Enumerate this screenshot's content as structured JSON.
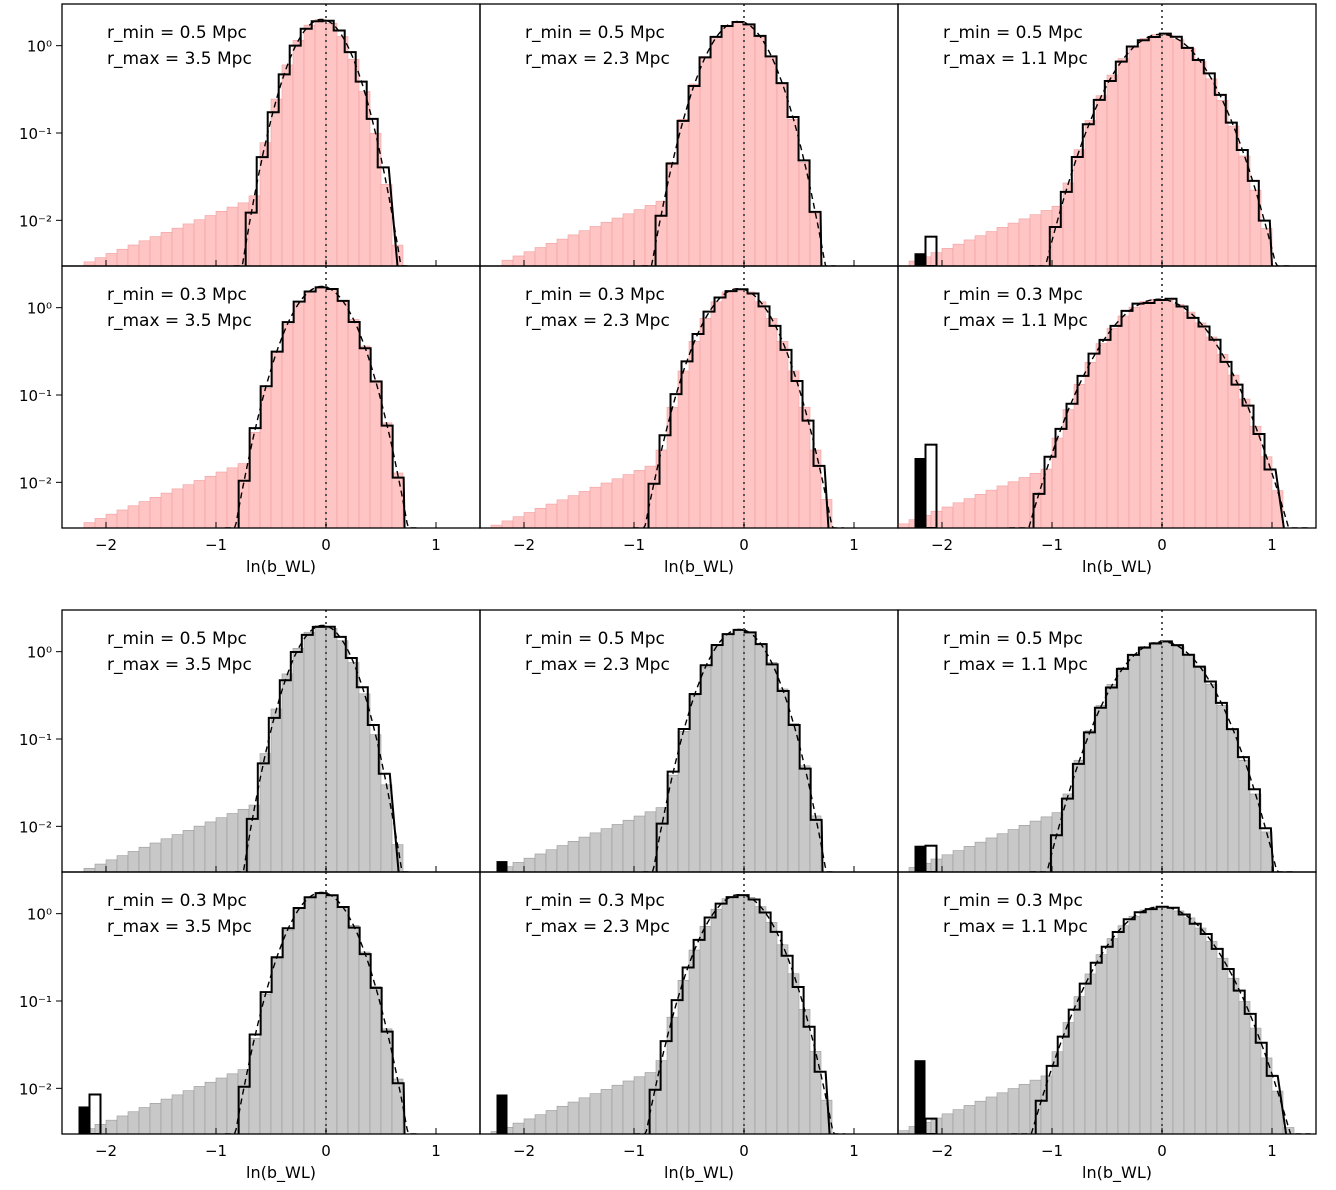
{
  "xlabel": "ln(b_WL)",
  "yticks": [
    "10⁰",
    "10⁻¹",
    "10⁻²"
  ],
  "xticks": [
    "−2",
    "−1",
    "0",
    "1"
  ],
  "colors": {
    "pink": "#ffc4c4",
    "pink_edge": "#f0a0a0",
    "gray": "#c8c8c8",
    "gray_edge": "#9a9a9a"
  },
  "chart_data": [
    {
      "type": "bar",
      "group": "top",
      "fill": "pink",
      "rmin": "r_min = 0.5 Mpc",
      "rmax": "r_max = 3.5 Mpc",
      "xlim": [
        -2.4,
        1.4
      ],
      "ylim": [
        0.003,
        3
      ],
      "yscale": "log",
      "gauss": {
        "mu": -0.04,
        "sigma": 0.2,
        "peak": 2.0
      },
      "step_frac": 0.3,
      "overflow_filled": 0,
      "overflow_open": 0
    },
    {
      "type": "bar",
      "group": "top",
      "fill": "pink",
      "rmin": "r_min = 0.5 Mpc",
      "rmax": "r_max = 2.3 Mpc",
      "xlim": [
        -2.4,
        1.4
      ],
      "ylim": [
        0.003,
        3
      ],
      "yscale": "log",
      "gauss": {
        "mu": -0.05,
        "sigma": 0.22,
        "peak": 1.9
      },
      "step_frac": 0.2,
      "overflow_filled": 0,
      "overflow_open": 0
    },
    {
      "type": "bar",
      "group": "top",
      "fill": "pink",
      "rmin": "r_min = 0.5 Mpc",
      "rmax": "r_max = 1.1 Mpc",
      "xlim": [
        -2.4,
        1.4
      ],
      "ylim": [
        0.003,
        3
      ],
      "yscale": "log",
      "gauss": {
        "mu": -0.01,
        "sigma": 0.3,
        "peak": 1.35
      },
      "step_frac": 0.55,
      "overflow_filled": 0.0042,
      "overflow_open": 0.0065
    },
    {
      "type": "bar",
      "group": "top",
      "fill": "pink",
      "rmin": "r_min = 0.3 Mpc",
      "rmax": "r_max = 3.5 Mpc",
      "xlim": [
        -2.4,
        1.4
      ],
      "ylim": [
        0.003,
        3
      ],
      "yscale": "log",
      "gauss": {
        "mu": -0.04,
        "sigma": 0.22,
        "peak": 1.75
      },
      "step_frac": 0.35,
      "overflow_filled": 0,
      "overflow_open": 0
    },
    {
      "type": "bar",
      "group": "top",
      "fill": "pink",
      "rmin": "r_min = 0.3 Mpc",
      "rmax": "r_max = 2.3 Mpc",
      "xlim": [
        -2.4,
        1.4
      ],
      "ylim": [
        0.003,
        3
      ],
      "yscale": "log",
      "gauss": {
        "mu": -0.05,
        "sigma": 0.24,
        "peak": 1.65
      },
      "step_frac": 0.25,
      "overflow_filled": 0,
      "overflow_open": 0
    },
    {
      "type": "bar",
      "group": "top",
      "fill": "pink",
      "rmin": "r_min = 0.3 Mpc",
      "rmax": "r_max = 1.1 Mpc",
      "xlim": [
        -2.4,
        1.4
      ],
      "ylim": [
        0.003,
        3
      ],
      "yscale": "log",
      "gauss": {
        "mu": -0.03,
        "sigma": 0.34,
        "peak": 1.25
      },
      "step_frac": 0.7,
      "overflow_filled": 0.019,
      "overflow_open": 0.027
    },
    {
      "type": "bar",
      "group": "bottom",
      "fill": "gray",
      "rmin": "r_min = 0.5 Mpc",
      "rmax": "r_max = 3.5 Mpc",
      "xlim": [
        -2.4,
        1.4
      ],
      "ylim": [
        0.003,
        3
      ],
      "yscale": "log",
      "gauss": {
        "mu": -0.03,
        "sigma": 0.2,
        "peak": 2.0
      },
      "step_frac": 0.2,
      "overflow_filled": 0,
      "overflow_open": 0
    },
    {
      "type": "bar",
      "group": "bottom",
      "fill": "gray",
      "rmin": "r_min = 0.5 Mpc",
      "rmax": "r_max = 2.3 Mpc",
      "xlim": [
        -2.4,
        1.4
      ],
      "ylim": [
        0.003,
        3
      ],
      "yscale": "log",
      "gauss": {
        "mu": -0.04,
        "sigma": 0.22,
        "peak": 1.8
      },
      "step_frac": 0.2,
      "overflow_filled": 0.004,
      "overflow_open": 0
    },
    {
      "type": "bar",
      "group": "bottom",
      "fill": "gray",
      "rmin": "r_min = 0.5 Mpc",
      "rmax": "r_max = 1.1 Mpc",
      "xlim": [
        -2.4,
        1.4
      ],
      "ylim": [
        0.003,
        3
      ],
      "yscale": "log",
      "gauss": {
        "mu": 0.0,
        "sigma": 0.3,
        "peak": 1.3
      },
      "step_frac": 0.3,
      "overflow_filled": 0.006,
      "overflow_open": 0.006
    },
    {
      "type": "bar",
      "group": "bottom",
      "fill": "gray",
      "rmin": "r_min = 0.3 Mpc",
      "rmax": "r_max = 3.5 Mpc",
      "xlim": [
        -2.4,
        1.4
      ],
      "ylim": [
        0.003,
        3
      ],
      "yscale": "log",
      "gauss": {
        "mu": -0.04,
        "sigma": 0.22,
        "peak": 1.75
      },
      "step_frac": 0.25,
      "overflow_filled": 0.0062,
      "overflow_open": 0.0085
    },
    {
      "type": "bar",
      "group": "bottom",
      "fill": "gray",
      "rmin": "r_min = 0.3 Mpc",
      "rmax": "r_max = 2.3 Mpc",
      "xlim": [
        -2.4,
        1.4
      ],
      "ylim": [
        0.003,
        3
      ],
      "yscale": "log",
      "gauss": {
        "mu": -0.04,
        "sigma": 0.24,
        "peak": 1.65
      },
      "step_frac": 0.25,
      "overflow_filled": 0.0085,
      "overflow_open": 0
    },
    {
      "type": "bar",
      "group": "bottom",
      "fill": "gray",
      "rmin": "r_min = 0.3 Mpc",
      "rmax": "r_max = 1.1 Mpc",
      "xlim": [
        -2.4,
        1.4
      ],
      "ylim": [
        0.003,
        3
      ],
      "yscale": "log",
      "gauss": {
        "mu": -0.01,
        "sigma": 0.34,
        "peak": 1.2
      },
      "step_frac": 0.3,
      "overflow_filled": 0.021,
      "overflow_open": 0.0045
    }
  ]
}
